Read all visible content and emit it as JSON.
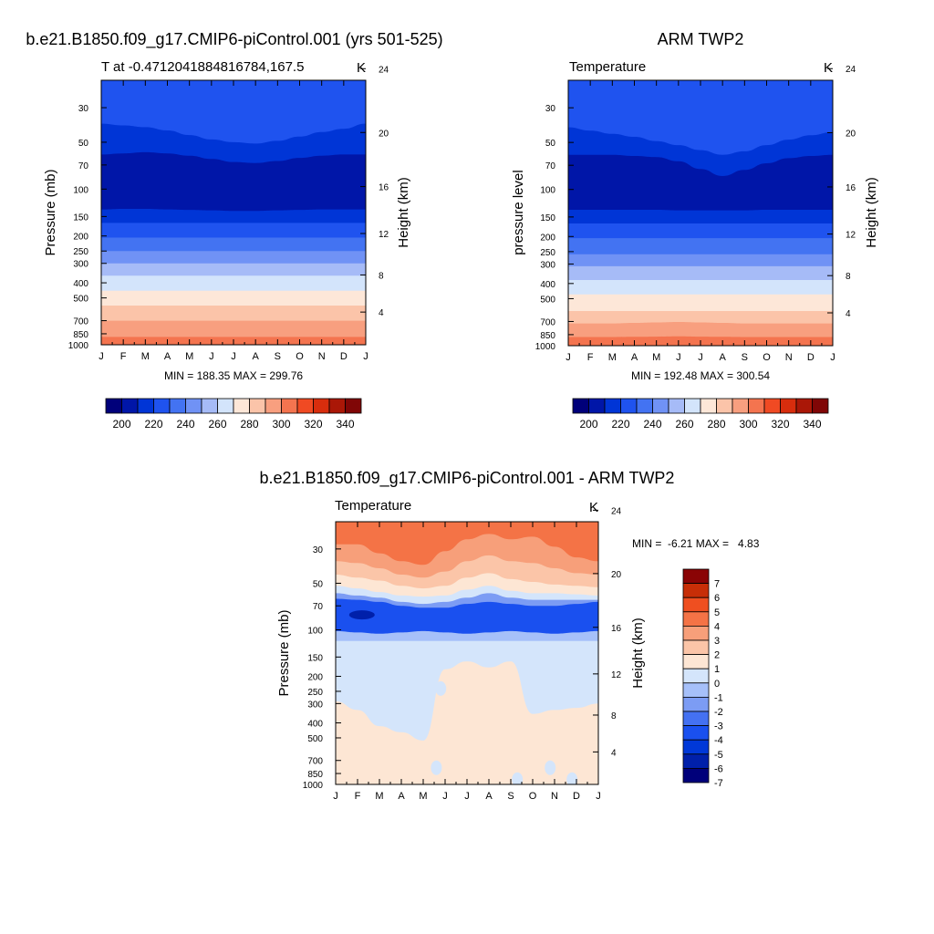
{
  "chart_data": [
    {
      "type": "contour",
      "id": "model",
      "title": "b.e21.B1850.f09_g17.CMIP6-piControl.001 (yrs 501-525)",
      "left_label": "T at -0.4712041884816784,167.5",
      "units": "K",
      "ylabel": "Pressure (mb)",
      "ylabel_right": "Height (km)",
      "x_ticks": [
        "J",
        "F",
        "M",
        "A",
        "M",
        "J",
        "J",
        "A",
        "S",
        "O",
        "N",
        "D",
        "J"
      ],
      "p_ticks": [
        30,
        50,
        70,
        100,
        150,
        200,
        250,
        300,
        400,
        500,
        700,
        850,
        1000
      ],
      "h_ticks": [
        4,
        8,
        12,
        16,
        20,
        24
      ],
      "plim": [
        20,
        1000
      ],
      "stats": "MIN = 188.35 MAX = 299.76",
      "levels": [
        190,
        200,
        210,
        220,
        230,
        240,
        250,
        260,
        270,
        280,
        290,
        300,
        310,
        320,
        330,
        340
      ],
      "colorbar_labels": [
        "200",
        "220",
        "240",
        "260",
        "280",
        "300",
        "320",
        "340"
      ],
      "bands": [
        {
          "p_bottom": 25,
          "value": 215,
          "edge": [
            21,
            21,
            21,
            21,
            21,
            22,
            22,
            22,
            21,
            21,
            21,
            21,
            21
          ]
        },
        {
          "p_bottom": 60,
          "value": 205,
          "edge": [
            38,
            39,
            40,
            42,
            45,
            48,
            50,
            51,
            49,
            46,
            43,
            41,
            38
          ]
        },
        {
          "p_bottom": 135,
          "value": 195,
          "edge": [
            60,
            59,
            58,
            59,
            61,
            64,
            67,
            68,
            66,
            63,
            61,
            60,
            60
          ]
        },
        {
          "p_bottom": 165,
          "value": 205,
          "edge": [
            135,
            134,
            134,
            135,
            136,
            137,
            138,
            138,
            137,
            136,
            135,
            135,
            135
          ]
        },
        {
          "p_bottom": 205,
          "value": 215,
          "edge": [
            165,
            165,
            165,
            165,
            165,
            165,
            165,
            165,
            165,
            165,
            165,
            165,
            165
          ]
        },
        {
          "p_bottom": 250,
          "value": 225,
          "edge": [
            205,
            205,
            205,
            205,
            205,
            205,
            205,
            205,
            205,
            205,
            205,
            205,
            205
          ]
        },
        {
          "p_bottom": 300,
          "value": 235,
          "edge": [
            250,
            250,
            250,
            250,
            250,
            250,
            250,
            250,
            250,
            250,
            250,
            250,
            250
          ]
        },
        {
          "p_bottom": 360,
          "value": 245,
          "edge": [
            300,
            300,
            300,
            300,
            300,
            300,
            300,
            300,
            300,
            300,
            300,
            300,
            300
          ]
        },
        {
          "p_bottom": 450,
          "value": 255,
          "edge": [
            360,
            360,
            360,
            360,
            360,
            360,
            360,
            360,
            360,
            360,
            360,
            360,
            360
          ]
        },
        {
          "p_bottom": 560,
          "value": 265,
          "edge": [
            450,
            450,
            450,
            450,
            450,
            450,
            450,
            450,
            450,
            450,
            450,
            450,
            450
          ]
        },
        {
          "p_bottom": 700,
          "value": 275,
          "edge": [
            560,
            560,
            560,
            560,
            560,
            560,
            560,
            560,
            560,
            560,
            560,
            560,
            560
          ]
        },
        {
          "p_bottom": 890,
          "value": 285,
          "edge": [
            700,
            700,
            700,
            700,
            700,
            700,
            700,
            700,
            700,
            700,
            700,
            700,
            700
          ]
        },
        {
          "p_bottom": 990,
          "value": 295,
          "edge": [
            890,
            890,
            890,
            890,
            890,
            890,
            890,
            890,
            890,
            890,
            890,
            890,
            890
          ]
        }
      ]
    },
    {
      "type": "contour",
      "id": "obs",
      "title": "ARM TWP2",
      "left_label": "Temperature",
      "units": "K",
      "ylabel": "pressure level",
      "ylabel_right": "Height (km)",
      "x_ticks": [
        "J",
        "F",
        "M",
        "A",
        "M",
        "J",
        "J",
        "A",
        "S",
        "O",
        "N",
        "D",
        "J"
      ],
      "p_ticks": [
        30,
        50,
        70,
        100,
        150,
        200,
        250,
        300,
        400,
        500,
        700,
        850,
        1000
      ],
      "h_ticks": [
        4,
        8,
        12,
        16,
        20,
        24
      ],
      "plim": [
        20,
        1000
      ],
      "stats": "MIN = 192.48 MAX = 300.54",
      "levels": [
        190,
        200,
        210,
        220,
        230,
        240,
        250,
        260,
        270,
        280,
        290,
        300,
        310,
        320,
        330,
        340
      ],
      "colorbar_labels": [
        "200",
        "220",
        "240",
        "260",
        "280",
        "300",
        "320",
        "340"
      ],
      "bands": [
        {
          "p_bottom": 40,
          "value": 215,
          "edge": [
            34,
            35,
            37,
            39,
            41,
            43,
            45,
            46,
            44,
            42,
            40,
            38,
            36
          ]
        },
        {
          "p_bottom": 75,
          "value": 205,
          "edge": [
            40,
            42,
            44,
            46,
            49,
            52,
            56,
            60,
            57,
            52,
            48,
            45,
            43
          ]
        },
        {
          "p_bottom": 135,
          "value": 195,
          "edge": [
            60,
            60,
            60,
            61,
            62,
            66,
            74,
            82,
            75,
            68,
            63,
            61,
            60
          ]
        },
        {
          "p_bottom": 165,
          "value": 205,
          "edge": [
            135,
            135,
            135,
            135,
            135,
            136,
            136,
            136,
            136,
            135,
            135,
            135,
            135
          ]
        },
        {
          "p_bottom": 205,
          "value": 215,
          "edge": [
            165,
            165,
            165,
            165,
            165,
            165,
            165,
            165,
            165,
            165,
            165,
            165,
            165
          ]
        },
        {
          "p_bottom": 260,
          "value": 225,
          "edge": [
            205,
            205,
            205,
            205,
            205,
            205,
            205,
            205,
            205,
            205,
            205,
            205,
            205
          ]
        },
        {
          "p_bottom": 310,
          "value": 235,
          "edge": [
            260,
            260,
            260,
            260,
            260,
            260,
            260,
            260,
            260,
            260,
            260,
            260,
            260
          ]
        },
        {
          "p_bottom": 380,
          "value": 245,
          "edge": [
            310,
            310,
            310,
            310,
            310,
            310,
            310,
            310,
            310,
            310,
            310,
            310,
            310
          ]
        },
        {
          "p_bottom": 470,
          "value": 255,
          "edge": [
            380,
            380,
            380,
            380,
            380,
            380,
            380,
            380,
            380,
            380,
            380,
            380,
            380
          ]
        },
        {
          "p_bottom": 600,
          "value": 265,
          "edge": [
            470,
            470,
            470,
            470,
            470,
            470,
            470,
            470,
            470,
            470,
            470,
            470,
            470
          ]
        },
        {
          "p_bottom": 720,
          "value": 275,
          "edge": [
            600,
            600,
            600,
            600,
            600,
            600,
            600,
            600,
            600,
            600,
            600,
            600,
            600
          ]
        },
        {
          "p_bottom": 880,
          "value": 285,
          "edge": [
            720,
            720,
            720,
            715,
            710,
            705,
            710,
            715,
            720,
            720,
            720,
            720,
            720
          ]
        },
        {
          "p_bottom": 1000,
          "value": 295,
          "edge": [
            880,
            880,
            880,
            878,
            875,
            872,
            875,
            878,
            880,
            880,
            880,
            880,
            880
          ]
        }
      ]
    },
    {
      "type": "contour",
      "id": "diff",
      "title": "b.e21.B1850.f09_g17.CMIP6-piControl.001 - ARM TWP2",
      "left_label": "Temperature",
      "units": "K",
      "ylabel": "Pressure (mb)",
      "ylabel_right": "Height (km)",
      "x_ticks": [
        "J",
        "F",
        "M",
        "A",
        "M",
        "J",
        "J",
        "A",
        "S",
        "O",
        "N",
        "D",
        "J"
      ],
      "p_ticks": [
        30,
        50,
        70,
        100,
        150,
        200,
        250,
        300,
        400,
        500,
        700,
        850,
        1000
      ],
      "h_ticks": [
        4,
        8,
        12,
        16,
        20,
        24
      ],
      "plim": [
        20,
        1000
      ],
      "stats": "MIN =  -6.21 MAX =   4.83",
      "levels": [
        -7,
        -6,
        -5,
        -4,
        -3,
        -2,
        -1,
        0,
        1,
        2,
        3,
        4,
        5,
        6,
        7
      ],
      "colorbar_labels": [
        "7",
        "6",
        "5",
        "4",
        "3",
        "2",
        "1",
        "0",
        "-1",
        "-2",
        "-3",
        "-4",
        "-5",
        "-6",
        "-7"
      ],
      "bands": [
        {
          "p_bottom": 32,
          "value": 3.5,
          "edge": [
            21,
            21,
            21,
            21,
            21,
            21,
            21,
            21,
            21,
            21,
            21,
            21,
            21
          ]
        },
        {
          "p_bottom": 40,
          "value": 2.5,
          "edge": [
            28,
            28,
            32,
            36,
            38,
            31,
            26,
            24,
            26,
            25,
            29,
            34,
            36
          ]
        },
        {
          "p_bottom": 48,
          "value": 1.5,
          "edge": [
            36,
            37,
            40,
            44,
            46,
            42,
            36,
            33,
            36,
            37,
            40,
            43,
            44
          ]
        },
        {
          "p_bottom": 55,
          "value": 0.5,
          "edge": [
            44,
            46,
            48,
            52,
            54,
            52,
            46,
            43,
            47,
            49,
            51,
            52,
            53
          ]
        },
        {
          "p_bottom": 62,
          "value": -0.5,
          "edge": [
            52,
            54,
            57,
            60,
            61,
            60,
            55,
            52,
            56,
            58,
            58,
            59,
            60
          ]
        },
        {
          "p_bottom": 68,
          "value": -2.5,
          "edge": [
            58,
            60,
            62,
            66,
            68,
            66,
            62,
            58,
            62,
            64,
            64,
            64,
            64
          ]
        },
        {
          "p_bottom": 102,
          "value": -4.5,
          "edge": [
            63,
            64,
            66,
            70,
            72,
            72,
            68,
            66,
            68,
            70,
            70,
            68,
            66
          ]
        },
        {
          "p_bottom": 118,
          "value": -2.0,
          "edge": [
            102,
            104,
            106,
            104,
            102,
            104,
            106,
            104,
            102,
            104,
            106,
            104,
            102
          ]
        },
        {
          "p_bottom": 290,
          "value": -0.5,
          "edge": [
            118,
            118,
            118,
            118,
            118,
            118,
            118,
            118,
            118,
            118,
            118,
            118,
            118
          ]
        },
        {
          "p_bottom": 1000,
          "value": 0.5,
          "edge": [
            290,
            330,
            420,
            460,
            520,
            180,
            160,
            175,
            160,
            350,
            330,
            320,
            300
          ]
        }
      ],
      "spots": [
        {
          "month": 1.2,
          "p": 80,
          "value": -6.2
        },
        {
          "month": 4.8,
          "p": 240,
          "value": -0.5
        },
        {
          "month": 4.6,
          "p": 780,
          "value": -0.5
        },
        {
          "month": 8.3,
          "p": 930,
          "value": -0.5
        },
        {
          "month": 9.8,
          "p": 780,
          "value": -0.5
        },
        {
          "month": 10.8,
          "p": 930,
          "value": -0.5
        }
      ]
    }
  ]
}
